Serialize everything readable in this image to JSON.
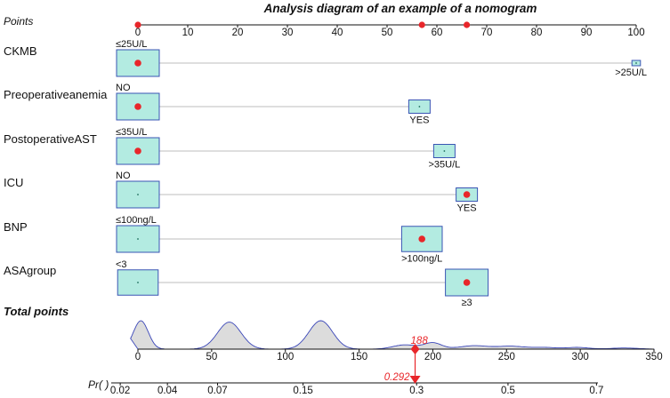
{
  "chart_data": {
    "type": "nomogram",
    "title": "Analysis diagram of an example of a nomogram",
    "points_axis": {
      "label": "Points",
      "range": [
        0,
        100
      ],
      "ticks": [
        "0",
        "10",
        "20",
        "30",
        "40",
        "50",
        "60",
        "70",
        "80",
        "90",
        "100"
      ],
      "ticks_num": [
        0,
        10,
        20,
        30,
        40,
        50,
        60,
        70,
        80,
        90,
        100
      ],
      "highlighted": [
        0,
        57,
        66
      ]
    },
    "variables": [
      {
        "name": "CKMB",
        "levels": [
          {
            "label": "≤25U/L",
            "points": 0,
            "size": 1.0,
            "label_pos": "above"
          },
          {
            "label": ">25U/L",
            "points": 100,
            "size": 0.2,
            "label_pos": "below"
          }
        ],
        "selected": 0
      },
      {
        "name": "Preoperativeanemia",
        "levels": [
          {
            "label": "NO",
            "points": 0,
            "size": 1.0,
            "label_pos": "above"
          },
          {
            "label": "YES",
            "points": 56.5,
            "size": 0.5,
            "label_pos": "below"
          }
        ],
        "selected": 0
      },
      {
        "name": "PostoperativeAST",
        "levels": [
          {
            "label": "≤35U/L",
            "points": 0,
            "size": 1.0,
            "label_pos": "above"
          },
          {
            "label": ">35U/L",
            "points": 61.5,
            "size": 0.5,
            "label_pos": "below"
          }
        ],
        "selected": 0
      },
      {
        "name": "ICU",
        "levels": [
          {
            "label": "NO",
            "points": 0,
            "size": 1.0,
            "label_pos": "above"
          },
          {
            "label": "YES",
            "points": 66,
            "size": 0.5,
            "label_pos": "below"
          }
        ],
        "selected": 1
      },
      {
        "name": "BNP",
        "levels": [
          {
            "label": "≤100ng/L",
            "points": 0,
            "size": 1.0,
            "label_pos": "above"
          },
          {
            "label": ">100ng/L",
            "points": 57,
            "size": 0.95,
            "label_pos": "below"
          }
        ],
        "selected": 1
      },
      {
        "name": "ASAgroup",
        "levels": [
          {
            "label": "<3",
            "points": 0,
            "size": 0.95,
            "label_pos": "above"
          },
          {
            "label": "≥3",
            "points": 66,
            "size": 1.0,
            "label_pos": "below"
          }
        ],
        "selected": 1
      }
    ],
    "total_points_axis": {
      "label": "Total points",
      "range": [
        0,
        350
      ],
      "ticks": [
        "0",
        "50",
        "100",
        "150",
        "200",
        "250",
        "300",
        "350"
      ],
      "ticks_num": [
        0,
        50,
        100,
        150,
        200,
        250,
        300,
        350
      ],
      "value": 188,
      "value_label": "188"
    },
    "probability_axis": {
      "label": "Pr( )",
      "ticks": [
        "0.02",
        "0.04",
        "0.07",
        "0.15",
        "0.3",
        "0.5",
        "0.7"
      ],
      "tick_points": [
        -12,
        20,
        54,
        112,
        189,
        251,
        311
      ],
      "value": 0.292,
      "value_label": "0.292"
    },
    "density_peaks": [
      {
        "center": 2,
        "height": 1.0,
        "width": 5
      },
      {
        "center": 62,
        "height": 0.95,
        "width": 8
      },
      {
        "center": 124,
        "height": 1.0,
        "width": 8
      },
      {
        "center": 181,
        "height": 0.15,
        "width": 8
      },
      {
        "center": 200,
        "height": 0.22,
        "width": 6
      },
      {
        "center": 228,
        "height": 0.12,
        "width": 10
      },
      {
        "center": 253,
        "height": 0.1,
        "width": 9
      },
      {
        "center": 275,
        "height": 0.06,
        "width": 8
      },
      {
        "center": 298,
        "height": 0.06,
        "width": 8
      },
      {
        "center": 330,
        "height": 0.04,
        "width": 9
      }
    ]
  }
}
